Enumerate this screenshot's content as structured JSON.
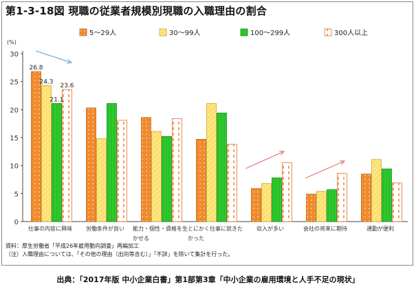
{
  "title": "第1-3-18図 現職の従業者規模別現職の入職理由の割合",
  "notes": {
    "source_data": "資料：厚生労働省「平成26年雇用動向調査」再編加工",
    "note": "（注）入職理由については、「その他の理由（出向等含む）」「不詳」を除いて集計を行った。"
  },
  "source": "出典：「2017年版 中小企業白書」第1部第3章「中小企業の雇用環境と人手不足の現状」",
  "colors": {
    "series_fill": [
      "#f08a2c",
      "#ffe680",
      "#2ecc2e",
      "#ffffff"
    ],
    "series_stroke": [
      "#c0641a",
      "#c8a830",
      "#1a8a1a",
      "#e07030"
    ],
    "arrow": [
      "#7aaed8",
      "#e07a7a"
    ]
  },
  "chart_data": {
    "type": "bar",
    "ylabel": "(%)",
    "ylim": [
      0,
      30
    ],
    "yticks": [
      0,
      5,
      10,
      15,
      20,
      25,
      30
    ],
    "grid": false,
    "legend_position": "top",
    "categories": [
      [
        "仕事の内容に興味"
      ],
      [
        "労働条件が良い"
      ],
      [
        "能力・個性・資格を生",
        "かせる"
      ],
      [
        "とにかく仕事に就きた",
        "かった"
      ],
      [
        "収入が多い"
      ],
      [
        "会社の将来に期待"
      ],
      [
        "通勤が便利"
      ]
    ],
    "series": [
      {
        "name": "5～29人",
        "values": [
          26.8,
          20.3,
          18.6,
          14.7,
          5.9,
          4.9,
          8.5
        ]
      },
      {
        "name": "30～99人",
        "values": [
          24.3,
          14.8,
          16.1,
          21.1,
          6.8,
          5.4,
          11.1
        ]
      },
      {
        "name": "100～299人",
        "values": [
          21.1,
          21.1,
          15.2,
          19.4,
          7.8,
          5.7,
          9.4
        ]
      },
      {
        "name": "300人以上",
        "values": [
          23.6,
          18.1,
          18.4,
          13.8,
          10.5,
          8.6,
          6.9
        ]
      }
    ],
    "data_labels": [
      {
        "series": 0,
        "category": 0,
        "text": "26.8"
      },
      {
        "series": 1,
        "category": 0,
        "text": "24.3"
      },
      {
        "series": 2,
        "category": 0,
        "text": "21.1"
      },
      {
        "series": 3,
        "category": 0,
        "text": "23.6"
      }
    ]
  }
}
